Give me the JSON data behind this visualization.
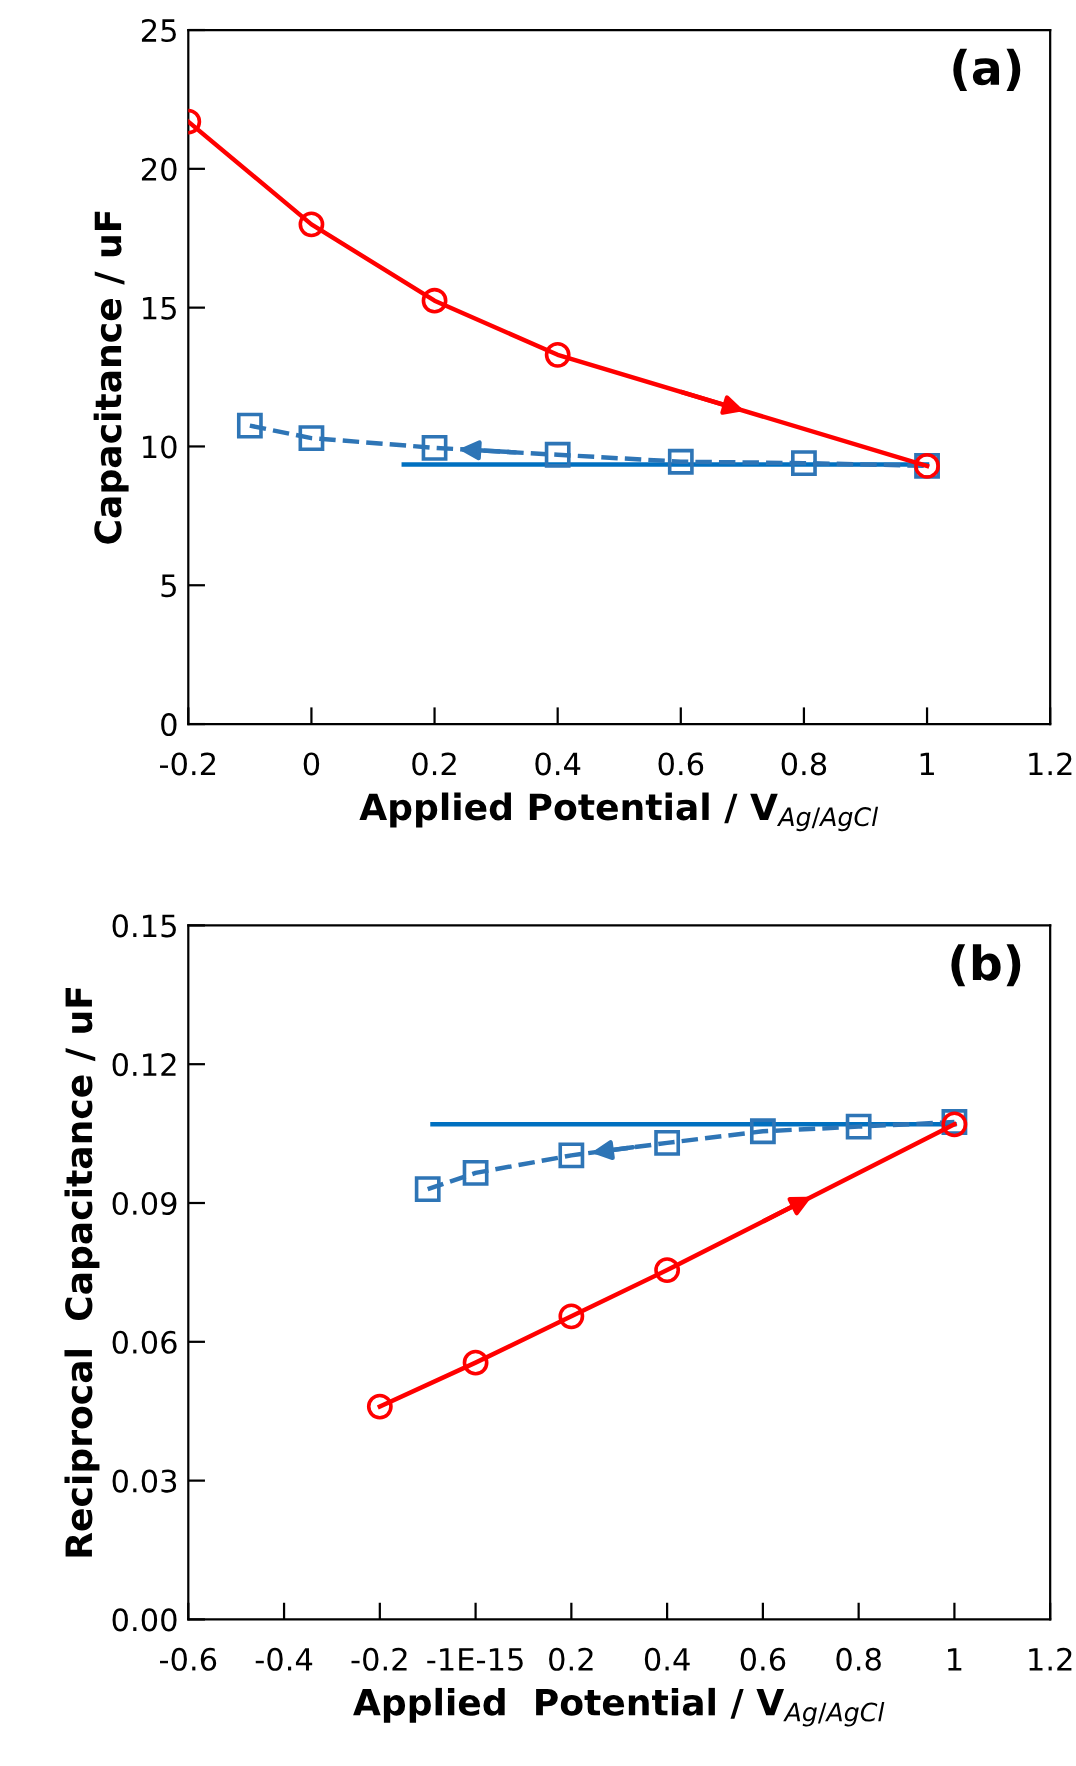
{
  "chart_data": [
    {
      "type": "line",
      "xlabel": "Applied Potential / V$_{Ag/AgCl}$",
      "ylabel": "Capacitance / uF",
      "annotations": [
        "(a)"
      ],
      "xlim": [
        -0.2,
        1.2
      ],
      "xticks": [
        -0.2,
        0,
        0.2,
        0.4,
        0.6,
        0.8,
        1,
        1.2
      ],
      "ylim": [
        0,
        25
      ],
      "yticks": [
        0,
        5,
        10,
        15,
        20,
        25
      ],
      "grid": false,
      "legend": false,
      "series": [
        {
          "color": "#ff0000",
          "x": [
            -0.2,
            0,
            0.2,
            0.4,
            1.0
          ],
          "values": [
            21.7,
            18.0,
            15.25,
            13.3,
            9.3
          ],
          "marker": "circle",
          "line_style": "solid"
        },
        {
          "color": "#2e75b6",
          "x": [
            -0.1,
            0,
            0.2,
            0.4,
            0.6,
            0.8,
            1.0
          ],
          "values": [
            10.75,
            10.3,
            9.95,
            9.7,
            9.45,
            9.4,
            9.3
          ],
          "marker": "square",
          "line_style": "dashed"
        },
        {
          "color": "#0070c0",
          "x": [
            0.15,
            1.0
          ],
          "values": [
            9.35,
            9.35
          ],
          "marker": "none",
          "line_style": "solid"
        }
      ]
    },
    {
      "type": "line",
      "xlabel": "Applied  Potential / V$_{Ag/AgCl}$",
      "ylabel": "Reciprocal  Capacitance / uF",
      "annotations": [
        "(b)"
      ],
      "xlim": [
        -0.6,
        1.2
      ],
      "xticks": [
        -0.6,
        -0.4,
        -0.2,
        {
          "value": 0,
          "label": "-1E-15"
        },
        0.2,
        0.4,
        0.6,
        0.8,
        1,
        1.2
      ],
      "ylim": [
        0,
        0.15
      ],
      "yticks": [
        {
          "value": 0,
          "label": "0.00"
        },
        {
          "value": 0.03,
          "label": "0.03"
        },
        {
          "value": 0.06,
          "label": "0.06"
        },
        {
          "value": 0.09,
          "label": "0.09"
        },
        {
          "value": 0.12,
          "label": "0.12"
        },
        {
          "value": 0.15,
          "label": "0.15"
        }
      ],
      "grid": false,
      "legend": false,
      "series": [
        {
          "color": "#ff0000",
          "x": [
            -0.2,
            0,
            0.2,
            0.4,
            1.0
          ],
          "values": [
            0.046,
            0.0555,
            0.0655,
            0.0755,
            0.107
          ],
          "marker": "circle",
          "line_style": "solid"
        },
        {
          "color": "#2e75b6",
          "x": [
            -0.1,
            0,
            0.2,
            0.4,
            0.6,
            0.8,
            1.0
          ],
          "values": [
            0.093,
            0.0965,
            0.1003,
            0.103,
            0.1055,
            0.1065,
            0.1075
          ],
          "marker": "square",
          "line_style": "dashed"
        },
        {
          "color": "#0070c0",
          "x": [
            -0.09,
            1.0
          ],
          "values": [
            0.107,
            0.107
          ],
          "marker": "none",
          "line_style": "solid"
        }
      ]
    }
  ]
}
